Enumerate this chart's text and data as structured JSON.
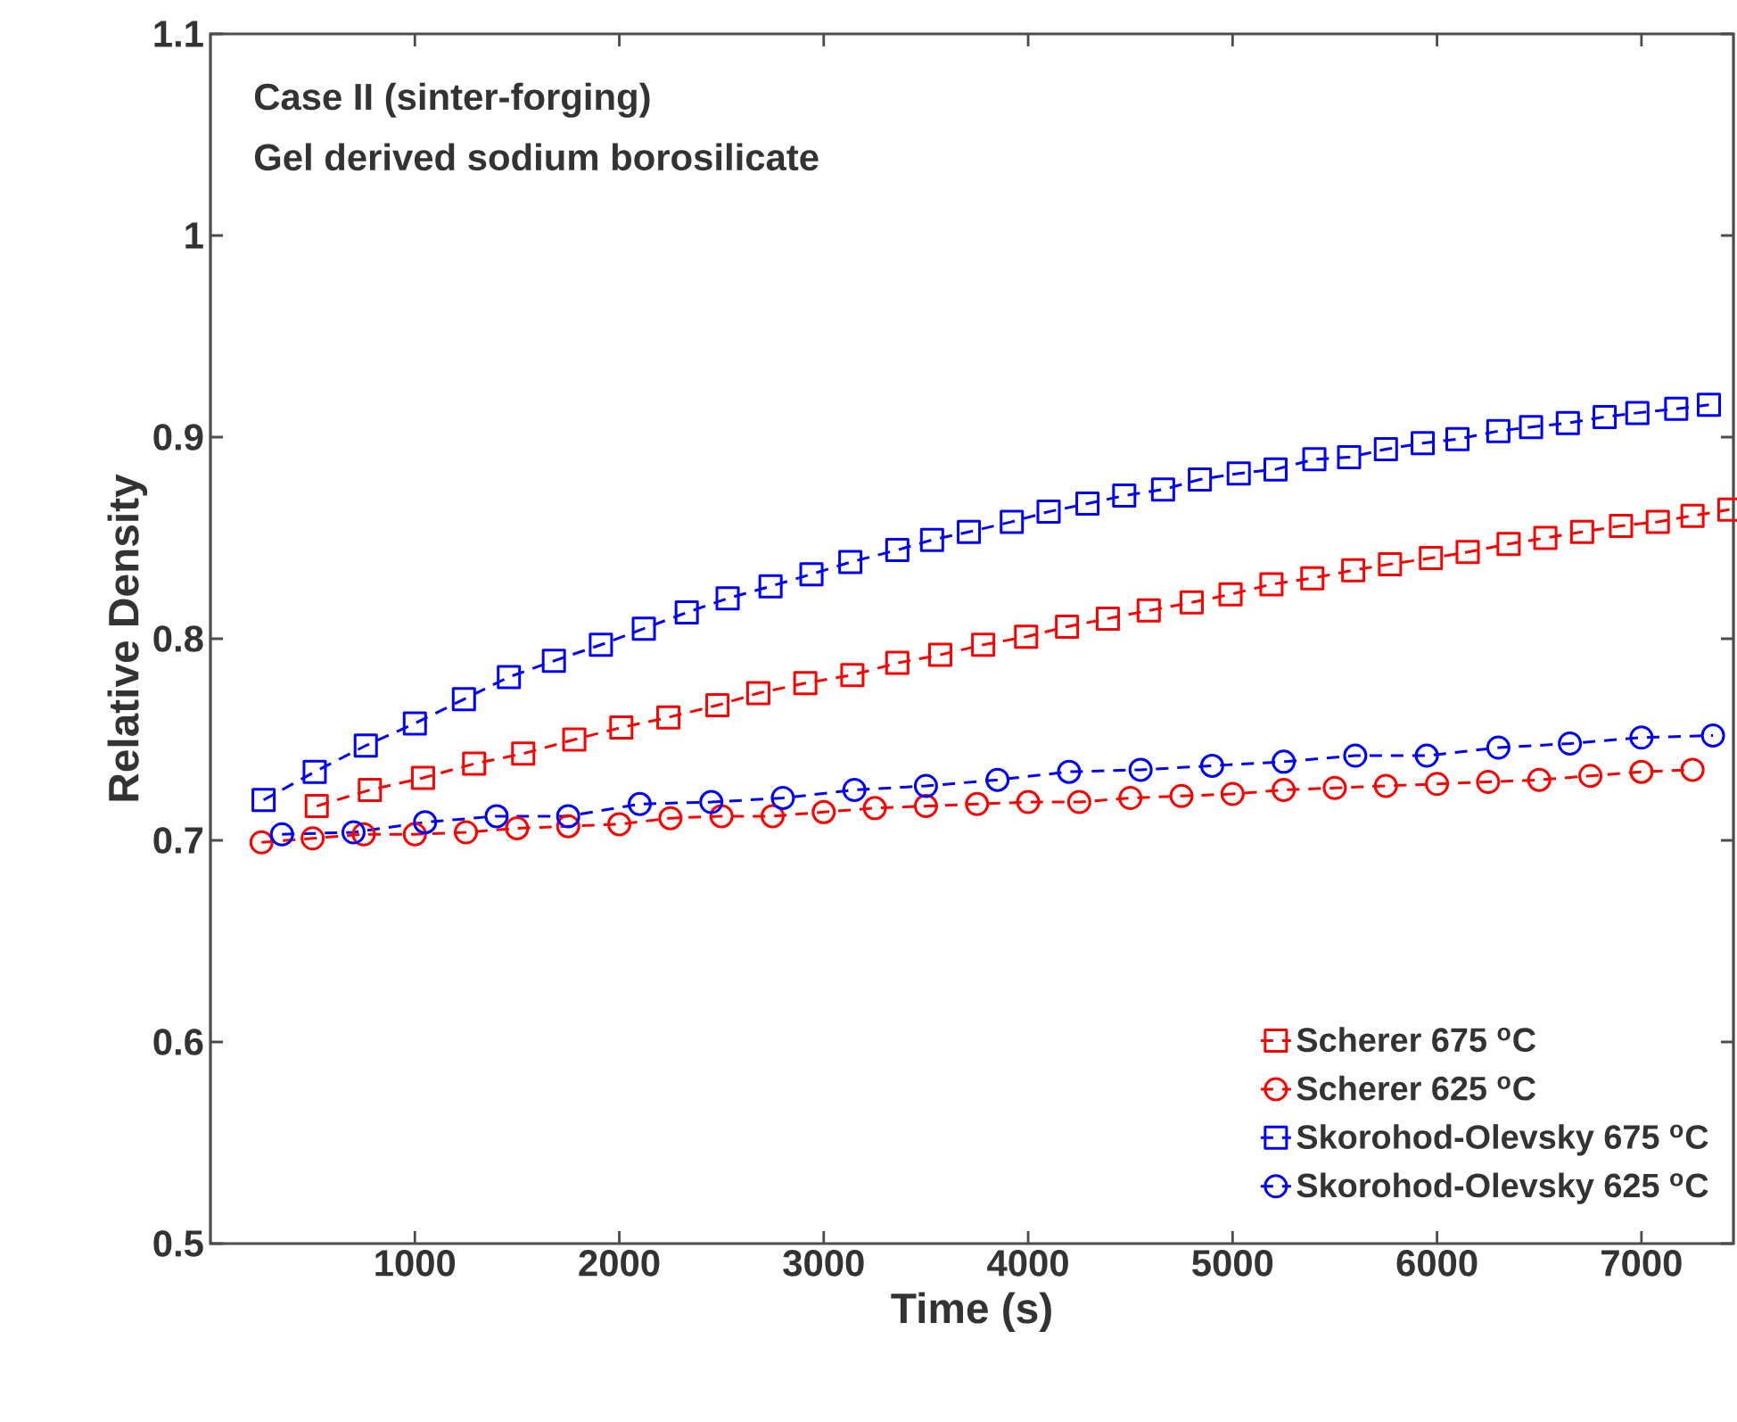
{
  "chart_data": {
    "type": "line",
    "annotations": [
      "Case II (sinter-forging)",
      "Gel derived sodium borosilicate"
    ],
    "xlabel": "Time (s)",
    "ylabel": "Relative Density",
    "xlim": [
      0,
      7450
    ],
    "ylim": [
      0.5,
      1.1
    ],
    "xticks": [
      1000,
      2000,
      3000,
      4000,
      5000,
      6000,
      7000
    ],
    "yticks": [
      0.5,
      0.6,
      0.7,
      0.8,
      0.9,
      1,
      1.1
    ],
    "legend": "bottom right",
    "line_style": "dashed",
    "series": [
      {
        "name": "Scherer 675 $^{o}$C",
        "color": "#ff0000",
        "marker": "square",
        "x": [
          520,
          780,
          1040,
          1290,
          1530,
          1780,
          2010,
          2240,
          2480,
          2680,
          2910,
          3140,
          3360,
          3570,
          3780,
          3990,
          4190,
          4390,
          4590,
          4800,
          4990,
          5190,
          5390,
          5590,
          5770,
          5970,
          6150,
          6350,
          6530,
          6710,
          6900,
          7080,
          7250,
          7430
        ],
        "values": [
          0.717,
          0.725,
          0.731,
          0.738,
          0.743,
          0.75,
          0.756,
          0.761,
          0.767,
          0.773,
          0.778,
          0.782,
          0.788,
          0.792,
          0.797,
          0.801,
          0.806,
          0.81,
          0.814,
          0.818,
          0.822,
          0.827,
          0.83,
          0.834,
          0.837,
          0.84,
          0.843,
          0.847,
          0.85,
          0.853,
          0.856,
          0.858,
          0.861,
          0.864
        ]
      },
      {
        "name": "Scherer 625 $^{o}$C",
        "color": "#ff0000",
        "marker": "circle",
        "x": [
          250,
          500,
          750,
          1000,
          1250,
          1500,
          1750,
          2000,
          2250,
          2500,
          2750,
          3000,
          3250,
          3500,
          3750,
          4000,
          4250,
          4500,
          4750,
          5000,
          5250,
          5500,
          5750,
          6000,
          6250,
          6500,
          6750,
          7000,
          7250
        ],
        "values": [
          0.699,
          0.701,
          0.703,
          0.703,
          0.704,
          0.706,
          0.707,
          0.708,
          0.711,
          0.712,
          0.712,
          0.714,
          0.716,
          0.717,
          0.718,
          0.719,
          0.719,
          0.721,
          0.722,
          0.723,
          0.725,
          0.726,
          0.727,
          0.728,
          0.729,
          0.73,
          0.732,
          0.734,
          0.735
        ]
      },
      {
        "name": "Skorohod-Olevsky 675 $^{o}$C",
        "color": "#0000ff",
        "marker": "square",
        "x": [
          260,
          510,
          760,
          1000,
          1240,
          1460,
          1680,
          1910,
          2120,
          2330,
          2530,
          2740,
          2940,
          3130,
          3360,
          3530,
          3710,
          3920,
          4100,
          4290,
          4470,
          4660,
          4840,
          5030,
          5210,
          5400,
          5570,
          5750,
          5930,
          6100,
          6300,
          6460,
          6640,
          6820,
          6980,
          7170,
          7330
        ],
        "values": [
          0.72,
          0.734,
          0.747,
          0.758,
          0.77,
          0.781,
          0.789,
          0.797,
          0.805,
          0.813,
          0.82,
          0.826,
          0.832,
          0.838,
          0.844,
          0.849,
          0.853,
          0.858,
          0.863,
          0.867,
          0.871,
          0.874,
          0.879,
          0.882,
          0.884,
          0.889,
          0.89,
          0.894,
          0.897,
          0.899,
          0.903,
          0.905,
          0.907,
          0.91,
          0.912,
          0.914,
          0.916
        ]
      },
      {
        "name": "Skorohod-Olevsky 625 $^{o}$C",
        "color": "#0000ff",
        "marker": "circle",
        "x": [
          350,
          700,
          1050,
          1400,
          1750,
          2100,
          2450,
          2800,
          3150,
          3500,
          3850,
          4200,
          4550,
          4900,
          5250,
          5600,
          5950,
          6300,
          6650,
          7000,
          7350
        ],
        "values": [
          0.703,
          0.704,
          0.709,
          0.712,
          0.712,
          0.718,
          0.719,
          0.721,
          0.725,
          0.727,
          0.73,
          0.734,
          0.735,
          0.737,
          0.739,
          0.742,
          0.742,
          0.746,
          0.748,
          0.751,
          0.752
        ]
      }
    ]
  }
}
